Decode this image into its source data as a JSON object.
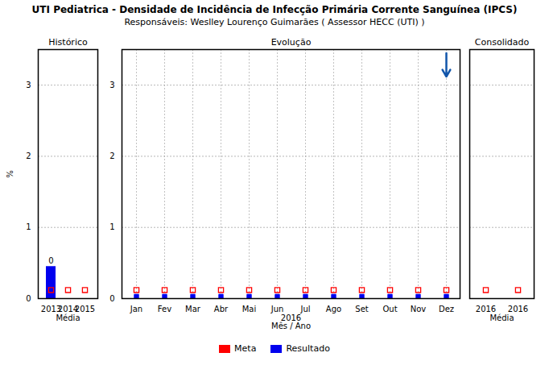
{
  "title": "UTI Pediatrica - Densidade de Incidência de Infecção Primária Corrente Sanguínea (IPCS)",
  "subtitle": "Responsáveis: Weslley Lourenço Guimarães ( Assessor HECC (UTI) )",
  "legend": "bottom",
  "chart_data": [
    {
      "type": "bar",
      "title": "Histórico",
      "categories": [
        "2013",
        "2014",
        "2015"
      ],
      "xlabel": "Média",
      "ylabel": "%",
      "ylim": [
        0,
        3.5
      ],
      "yticks": [
        0,
        1,
        2,
        3
      ],
      "grid": true,
      "series": [
        {
          "name": "Meta",
          "type": "scatter",
          "marker": "square_open",
          "color": "#ff0000",
          "values": [
            0.12,
            0.12,
            0.12
          ]
        },
        {
          "name": "Resultado",
          "type": "bar",
          "color": "#0000ee",
          "values": [
            0.45,
            0,
            0
          ],
          "data_labels": true,
          "value_labels": [
            "0",
            null,
            null
          ]
        }
      ]
    },
    {
      "type": "scatter",
      "title": "Evolução",
      "categories": [
        "Jan",
        "Fev",
        "Mar",
        "Abr",
        "Mai",
        "Jun",
        "Jul",
        "Ago",
        "Set",
        "Out",
        "Nov",
        "Dez"
      ],
      "xlabel": "2016\nMês / Ano",
      "ylim": [
        0,
        3.5
      ],
      "yticks": [
        0,
        1,
        2,
        3
      ],
      "grid": "both",
      "series": [
        {
          "name": "Meta",
          "marker": "square_open",
          "color": "#ff0000",
          "values": [
            0.12,
            0.12,
            0.12,
            0.12,
            0.12,
            0.12,
            0.12,
            0.12,
            0.12,
            0.12,
            0.12,
            0.12
          ]
        },
        {
          "name": "Resultado",
          "marker": "square",
          "color": "#0000ee",
          "values": [
            0.03,
            0.03,
            0.03,
            0.03,
            0.03,
            0.03,
            0.03,
            0.03,
            0.03,
            0.03,
            0.03,
            0.03
          ]
        }
      ],
      "annotations": [
        {
          "type": "arrow",
          "x": "Dez",
          "y_start": 3.45,
          "y_end": 3.12,
          "color": "#1155aa"
        }
      ]
    },
    {
      "type": "scatter",
      "title": "Consolidado",
      "categories": [
        "2016",
        "2016"
      ],
      "xlabel": "Média",
      "ylim": [
        0,
        3.5
      ],
      "yticks": [
        0,
        1,
        2,
        3
      ],
      "grid": true,
      "tick_labels": "x",
      "series": [
        {
          "name": "Meta",
          "marker": "square_open",
          "color": "#ff0000",
          "values": [
            0.12,
            0.12
          ]
        }
      ]
    }
  ]
}
